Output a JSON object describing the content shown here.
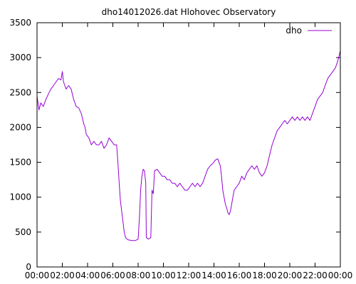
{
  "chart_data": {
    "type": "line",
    "title": "dho14012026.dat Hlohovec Observatory",
    "xlabel": "",
    "ylabel": "",
    "x_unit": "hours",
    "xlim": [
      0,
      24
    ],
    "ylim": [
      0,
      3500
    ],
    "x_ticks": [
      {
        "value": 0,
        "label": "00:00"
      },
      {
        "value": 2,
        "label": "02:00"
      },
      {
        "value": 4,
        "label": "04:00"
      },
      {
        "value": 6,
        "label": "06:00"
      },
      {
        "value": 8,
        "label": "08:00"
      },
      {
        "value": 10,
        "label": "10:00"
      },
      {
        "value": 12,
        "label": "12:00"
      },
      {
        "value": 14,
        "label": "14:00"
      },
      {
        "value": 16,
        "label": "16:00"
      },
      {
        "value": 18,
        "label": "18:00"
      },
      {
        "value": 20,
        "label": "20:00"
      },
      {
        "value": 22,
        "label": "22:00"
      },
      {
        "value": 24,
        "label": "00:00"
      }
    ],
    "y_ticks": [
      0,
      500,
      1000,
      1500,
      2000,
      2500,
      3000,
      3500
    ],
    "grid": false,
    "legend": "top-right",
    "series": [
      {
        "name": "dho",
        "color": "#9400d3",
        "points": [
          [
            0.0,
            2450
          ],
          [
            0.15,
            2250
          ],
          [
            0.3,
            2350
          ],
          [
            0.5,
            2300
          ],
          [
            0.7,
            2400
          ],
          [
            0.9,
            2480
          ],
          [
            1.1,
            2550
          ],
          [
            1.3,
            2600
          ],
          [
            1.5,
            2650
          ],
          [
            1.7,
            2700
          ],
          [
            1.9,
            2680
          ],
          [
            2.0,
            2800
          ],
          [
            2.1,
            2650
          ],
          [
            2.3,
            2550
          ],
          [
            2.5,
            2600
          ],
          [
            2.7,
            2550
          ],
          [
            2.9,
            2400
          ],
          [
            3.1,
            2300
          ],
          [
            3.3,
            2280
          ],
          [
            3.5,
            2200
          ],
          [
            3.7,
            2050
          ],
          [
            3.8,
            2000
          ],
          [
            3.9,
            1900
          ],
          [
            4.1,
            1850
          ],
          [
            4.3,
            1750
          ],
          [
            4.5,
            1800
          ],
          [
            4.7,
            1750
          ],
          [
            4.9,
            1750
          ],
          [
            5.1,
            1800
          ],
          [
            5.3,
            1700
          ],
          [
            5.5,
            1750
          ],
          [
            5.7,
            1850
          ],
          [
            5.9,
            1800
          ],
          [
            6.1,
            1750
          ],
          [
            6.3,
            1750
          ],
          [
            6.4,
            1500
          ],
          [
            6.5,
            1200
          ],
          [
            6.6,
            950
          ],
          [
            6.7,
            800
          ],
          [
            6.8,
            650
          ],
          [
            6.9,
            500
          ],
          [
            7.0,
            420
          ],
          [
            7.2,
            390
          ],
          [
            7.5,
            380
          ],
          [
            7.8,
            380
          ],
          [
            8.0,
            400
          ],
          [
            8.1,
            700
          ],
          [
            8.2,
            1100
          ],
          [
            8.3,
            1300
          ],
          [
            8.4,
            1400
          ],
          [
            8.5,
            1380
          ],
          [
            8.6,
            1200
          ],
          [
            8.65,
            420
          ],
          [
            8.8,
            400
          ],
          [
            9.0,
            420
          ],
          [
            9.1,
            1100
          ],
          [
            9.2,
            1050
          ],
          [
            9.3,
            1380
          ],
          [
            9.5,
            1400
          ],
          [
            9.7,
            1350
          ],
          [
            9.9,
            1300
          ],
          [
            10.1,
            1300
          ],
          [
            10.3,
            1250
          ],
          [
            10.5,
            1250
          ],
          [
            10.7,
            1200
          ],
          [
            10.9,
            1200
          ],
          [
            11.1,
            1150
          ],
          [
            11.3,
            1200
          ],
          [
            11.5,
            1150
          ],
          [
            11.7,
            1100
          ],
          [
            11.9,
            1100
          ],
          [
            12.1,
            1150
          ],
          [
            12.3,
            1200
          ],
          [
            12.5,
            1150
          ],
          [
            12.7,
            1200
          ],
          [
            12.9,
            1150
          ],
          [
            13.1,
            1200
          ],
          [
            13.3,
            1300
          ],
          [
            13.5,
            1400
          ],
          [
            13.7,
            1450
          ],
          [
            13.9,
            1480
          ],
          [
            14.1,
            1530
          ],
          [
            14.3,
            1550
          ],
          [
            14.5,
            1450
          ],
          [
            14.6,
            1300
          ],
          [
            14.7,
            1100
          ],
          [
            14.8,
            1000
          ],
          [
            14.9,
            900
          ],
          [
            15.0,
            850
          ],
          [
            15.1,
            780
          ],
          [
            15.2,
            750
          ],
          [
            15.3,
            800
          ],
          [
            15.4,
            900
          ],
          [
            15.5,
            1000
          ],
          [
            15.6,
            1100
          ],
          [
            15.8,
            1150
          ],
          [
            16.0,
            1200
          ],
          [
            16.2,
            1300
          ],
          [
            16.4,
            1250
          ],
          [
            16.6,
            1350
          ],
          [
            16.8,
            1400
          ],
          [
            17.0,
            1450
          ],
          [
            17.2,
            1400
          ],
          [
            17.4,
            1450
          ],
          [
            17.6,
            1350
          ],
          [
            17.8,
            1300
          ],
          [
            18.0,
            1350
          ],
          [
            18.2,
            1450
          ],
          [
            18.4,
            1600
          ],
          [
            18.6,
            1750
          ],
          [
            18.8,
            1850
          ],
          [
            19.0,
            1950
          ],
          [
            19.2,
            2000
          ],
          [
            19.4,
            2050
          ],
          [
            19.6,
            2100
          ],
          [
            19.8,
            2050
          ],
          [
            20.0,
            2100
          ],
          [
            20.2,
            2150
          ],
          [
            20.4,
            2100
          ],
          [
            20.6,
            2150
          ],
          [
            20.8,
            2100
          ],
          [
            21.0,
            2150
          ],
          [
            21.2,
            2100
          ],
          [
            21.4,
            2150
          ],
          [
            21.6,
            2100
          ],
          [
            21.8,
            2200
          ],
          [
            22.0,
            2300
          ],
          [
            22.2,
            2400
          ],
          [
            22.4,
            2450
          ],
          [
            22.6,
            2500
          ],
          [
            22.8,
            2600
          ],
          [
            23.0,
            2700
          ],
          [
            23.2,
            2750
          ],
          [
            23.4,
            2800
          ],
          [
            23.6,
            2850
          ],
          [
            23.8,
            2950
          ],
          [
            24.0,
            3100
          ]
        ]
      }
    ]
  }
}
